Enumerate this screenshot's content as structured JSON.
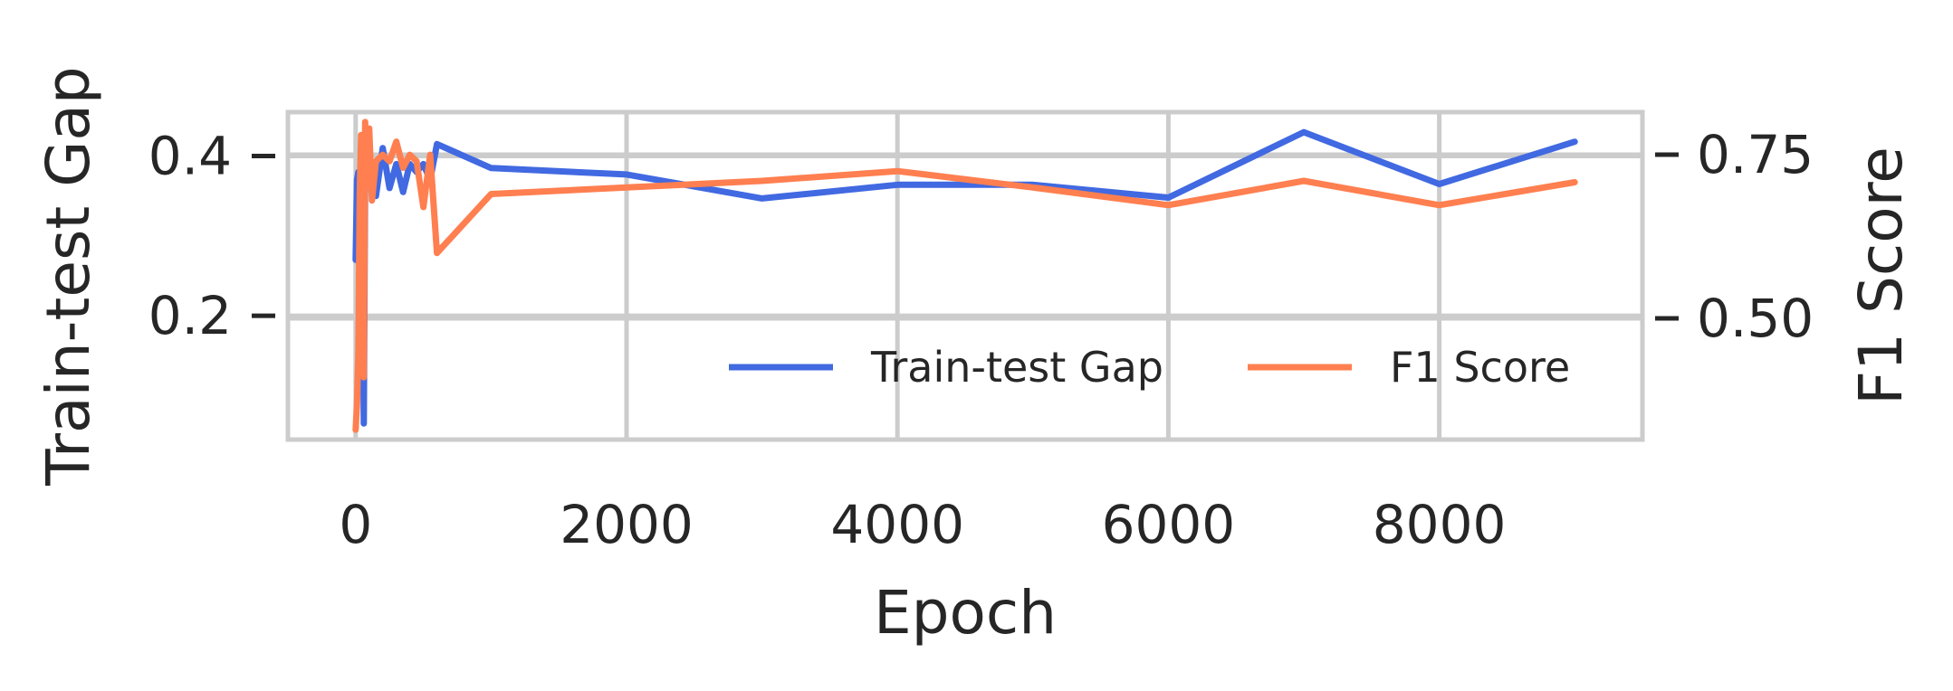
{
  "chart_data": {
    "type": "line",
    "title": "",
    "xlabel": "Epoch",
    "ylabel_left": "Train-test Gap",
    "ylabel_right": "F1 Score",
    "xlim": [
      -500,
      9500
    ],
    "xticks": [
      0,
      2000,
      4000,
      6000,
      8000
    ],
    "xtick_labels": [
      "0",
      "2000",
      "4000",
      "6000",
      "8000"
    ],
    "ylim_left": [
      0.045,
      0.455
    ],
    "yticks_left": [
      0.2,
      0.4
    ],
    "ytick_labels_left": [
      "0.2",
      "0.4"
    ],
    "ylim_right": [
      0.315,
      0.815
    ],
    "yticks_right": [
      0.5,
      0.75
    ],
    "ytick_labels_right": [
      "0.50",
      "0.75"
    ],
    "grid": true,
    "legend_position": "lower-right",
    "series": [
      {
        "name": "Train-test Gap",
        "axis": "left",
        "color": "#4169e1",
        "x": [
          0,
          10,
          20,
          30,
          40,
          50,
          60,
          70,
          80,
          100,
          150,
          200,
          250,
          300,
          350,
          400,
          450,
          500,
          550,
          600,
          1000,
          2000,
          3000,
          4000,
          5000,
          6000,
          7000,
          8000,
          9000
        ],
        "y": [
          0.27,
          0.37,
          0.38,
          0.37,
          0.38,
          0.37,
          0.065,
          0.38,
          0.36,
          0.375,
          0.35,
          0.41,
          0.36,
          0.39,
          0.355,
          0.39,
          0.38,
          0.39,
          0.37,
          0.415,
          0.385,
          0.377,
          0.347,
          0.364,
          0.364,
          0.348,
          0.43,
          0.365,
          0.418
        ]
      },
      {
        "name": "F1 Score",
        "axis": "right",
        "color": "#ff7f50",
        "x": [
          0,
          10,
          20,
          30,
          40,
          50,
          60,
          70,
          80,
          90,
          100,
          120,
          150,
          200,
          250,
          300,
          350,
          400,
          450,
          500,
          550,
          600,
          1000,
          2000,
          3000,
          4000,
          5000,
          6000,
          7000,
          8000,
          9000
        ],
        "y": [
          0.33,
          0.37,
          0.45,
          0.69,
          0.78,
          0.73,
          0.41,
          0.8,
          0.7,
          0.78,
          0.79,
          0.68,
          0.74,
          0.75,
          0.74,
          0.77,
          0.73,
          0.75,
          0.74,
          0.67,
          0.75,
          0.6,
          0.69,
          0.7,
          0.71,
          0.725,
          0.7,
          0.673,
          0.71,
          0.673,
          0.708
        ]
      }
    ]
  }
}
